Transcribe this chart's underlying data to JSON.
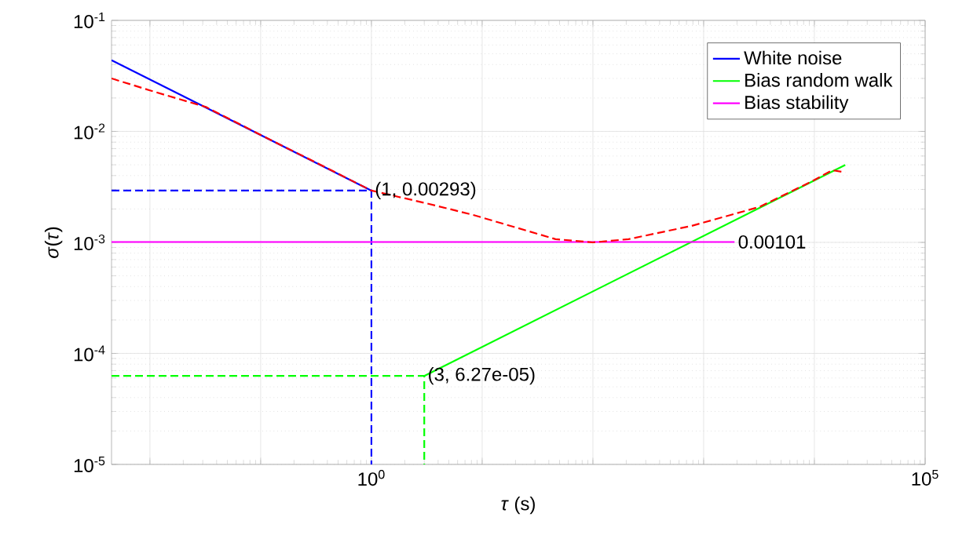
{
  "chart_data": {
    "type": "line",
    "xlabel": "*τ* (s)",
    "ylabel": "*σ*(*τ*)",
    "log": "xy",
    "grid": true,
    "legend": "top right",
    "xlim": [
      0.0045,
      100000
    ],
    "ylim": [
      1e-05,
      0.1
    ],
    "xticks": [
      {
        "value": 0.01,
        "label": null
      },
      {
        "value": 0.1,
        "label": null
      },
      {
        "value": 1,
        "label": "10$^{0}$"
      },
      {
        "value": 10,
        "label": null
      },
      {
        "value": 100,
        "label": null
      },
      {
        "value": 1000,
        "label": null
      },
      {
        "value": 10000,
        "label": null
      },
      {
        "value": 100000,
        "label": "10$^{5}$"
      }
    ],
    "yticks": [
      {
        "value": 1e-05,
        "label": "10$^{-5}$"
      },
      {
        "value": 0.0001,
        "label": "10$^{-4}$"
      },
      {
        "value": 0.001,
        "label": "10$^{-3}$"
      },
      {
        "value": 0.01,
        "label": "10$^{-2}$"
      },
      {
        "value": 0.1,
        "label": "10$^{-1}$"
      }
    ],
    "series": [
      {
        "color": "#0000ff",
        "line_style": "dashed",
        "x": [
          0.0045,
          1,
          1
        ],
        "values": [
          0.00293,
          0.00293,
          1e-05
        ]
      },
      {
        "color": "#00ff00",
        "line_style": "dashed",
        "x": [
          0.0045,
          3,
          3
        ],
        "values": [
          6.27e-05,
          6.27e-05,
          1e-05
        ]
      },
      {
        "name": "White noise",
        "color": "#0000ff",
        "line_style": "solid",
        "x": [
          0.0045,
          1
        ],
        "values": [
          0.0437,
          0.00293
        ]
      },
      {
        "name": "Bias random walk",
        "color": "#00ff00",
        "line_style": "solid",
        "x": [
          3,
          19000
        ],
        "values": [
          6.27e-05,
          0.00499
        ]
      },
      {
        "name": "Bias stability",
        "color": "#ff00ff",
        "line_style": "solid",
        "x": [
          0.0045,
          1900
        ],
        "values": [
          0.00101,
          0.00101
        ]
      },
      {
        "color": "#ff0000",
        "line_style": "dashed",
        "x": [
          0.0045,
          0.01,
          0.032,
          0.1,
          0.32,
          1,
          3.2,
          8.1,
          46,
          100,
          210,
          780,
          3200,
          9500,
          14500,
          19000
        ],
        "values": [
          0.03,
          0.0234,
          0.0166,
          0.0093,
          0.0052,
          0.00293,
          0.00224,
          0.00178,
          0.00107,
          0.001,
          0.00107,
          0.00141,
          0.00209,
          0.00355,
          0.00447,
          0.00427
        ]
      }
    ],
    "annotations": [
      {
        "text": "(1, 0.00293)",
        "x": 1,
        "y": 0.00293
      },
      {
        "text": "(3, 6.27e-05)",
        "x": 3,
        "y": 6.27e-05
      },
      {
        "text": "0.00101",
        "x": 1900,
        "y": 0.00101
      }
    ]
  }
}
